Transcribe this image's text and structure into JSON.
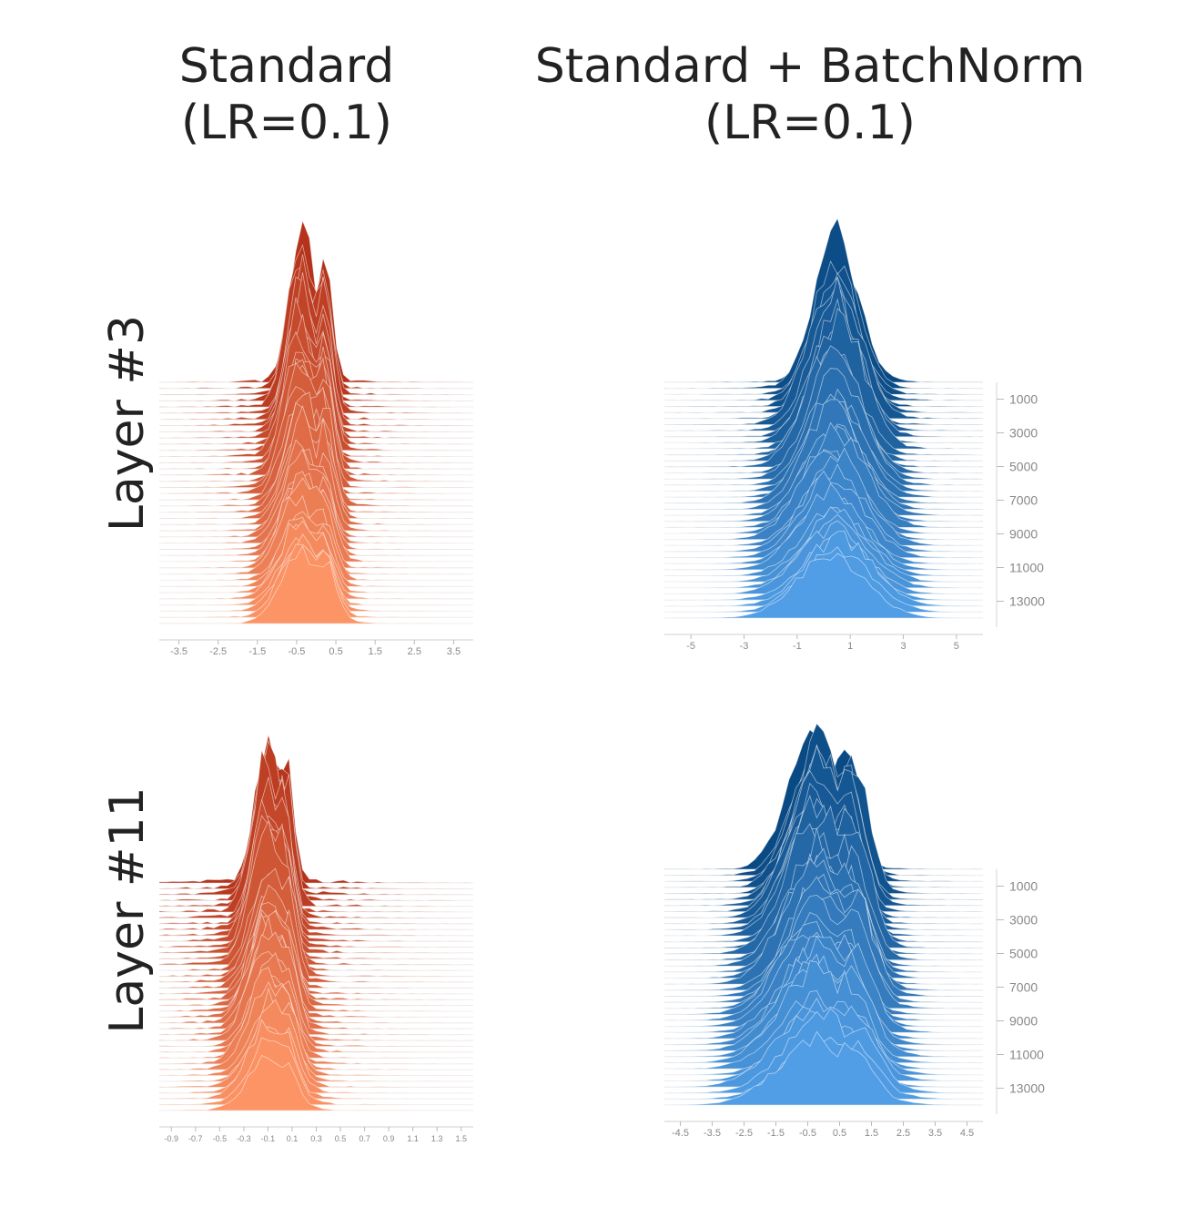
{
  "columns": [
    {
      "line1": "Standard",
      "line2": "(LR=0.1)"
    },
    {
      "line1": "Standard + BatchNorm",
      "line2": "(LR=0.1)"
    }
  ],
  "rows": [
    {
      "label": "Layer #3"
    },
    {
      "label": "Layer #11"
    }
  ],
  "colors": {
    "standard_dark": "#b5331a",
    "standard_light": "#fc9466",
    "batchnorm_dark": "#0a4a84",
    "batchnorm_light": "#529ee6"
  },
  "chart_data": [
    {
      "type": "area",
      "subtype": "ridgeline_histogram",
      "row": "Layer #3",
      "column": "Standard",
      "x_ticks": [
        "-3.5",
        "-2.5",
        "-1.5",
        "-0.5",
        "0.5",
        "1.5",
        "2.5",
        "3.5"
      ],
      "xlim": [
        -4.0,
        4.0
      ],
      "step_ticks": [],
      "steps_range": [
        0,
        14000
      ],
      "distribution": {
        "center": -0.4,
        "spread": 0.55,
        "second_peak_offset": 0.55,
        "tail_width": 4.0
      }
    },
    {
      "type": "area",
      "subtype": "ridgeline_histogram",
      "row": "Layer #3",
      "column": "Standard + BatchNorm",
      "x_ticks": [
        "-5",
        "-3",
        "-1",
        "1",
        "3",
        "5"
      ],
      "xlim": [
        -6.0,
        6.0
      ],
      "step_ticks": [
        "1000",
        "3000",
        "5000",
        "7000",
        "9000",
        "11000",
        "13000"
      ],
      "steps_range": [
        0,
        14000
      ],
      "distribution": {
        "center": 0.4,
        "spread": 1.4,
        "second_peak_offset": 0,
        "tail_width": 6.0
      }
    },
    {
      "type": "area",
      "subtype": "ridgeline_histogram",
      "row": "Layer #11",
      "column": "Standard",
      "x_ticks": [
        "-0.9",
        "-0.7",
        "-0.5",
        "-0.3",
        "-0.1",
        "0.1",
        "0.3",
        "0.5",
        "0.7",
        "0.9",
        "1.1",
        "1.3",
        "1.5"
      ],
      "xlim": [
        -1.0,
        1.6
      ],
      "step_ticks": [],
      "steps_range": [
        0,
        14000
      ],
      "distribution": {
        "center": -0.1,
        "spread": 0.18,
        "second_peak_offset": 0.14,
        "tail_width": 1.6
      }
    },
    {
      "type": "area",
      "subtype": "ridgeline_histogram",
      "row": "Layer #11",
      "column": "Standard + BatchNorm",
      "x_ticks": [
        "-4.5",
        "-3.5",
        "-2.5",
        "-1.5",
        "-0.5",
        "0.5",
        "1.5",
        "2.5",
        "3.5",
        "4.5"
      ],
      "xlim": [
        -5.0,
        5.0
      ],
      "step_ticks": [
        "1000",
        "3000",
        "5000",
        "7000",
        "9000",
        "11000",
        "13000"
      ],
      "steps_range": [
        0,
        14000
      ],
      "distribution": {
        "center": -0.2,
        "spread": 1.3,
        "second_peak_offset": 1.0,
        "tail_width": 5.0
      }
    }
  ]
}
